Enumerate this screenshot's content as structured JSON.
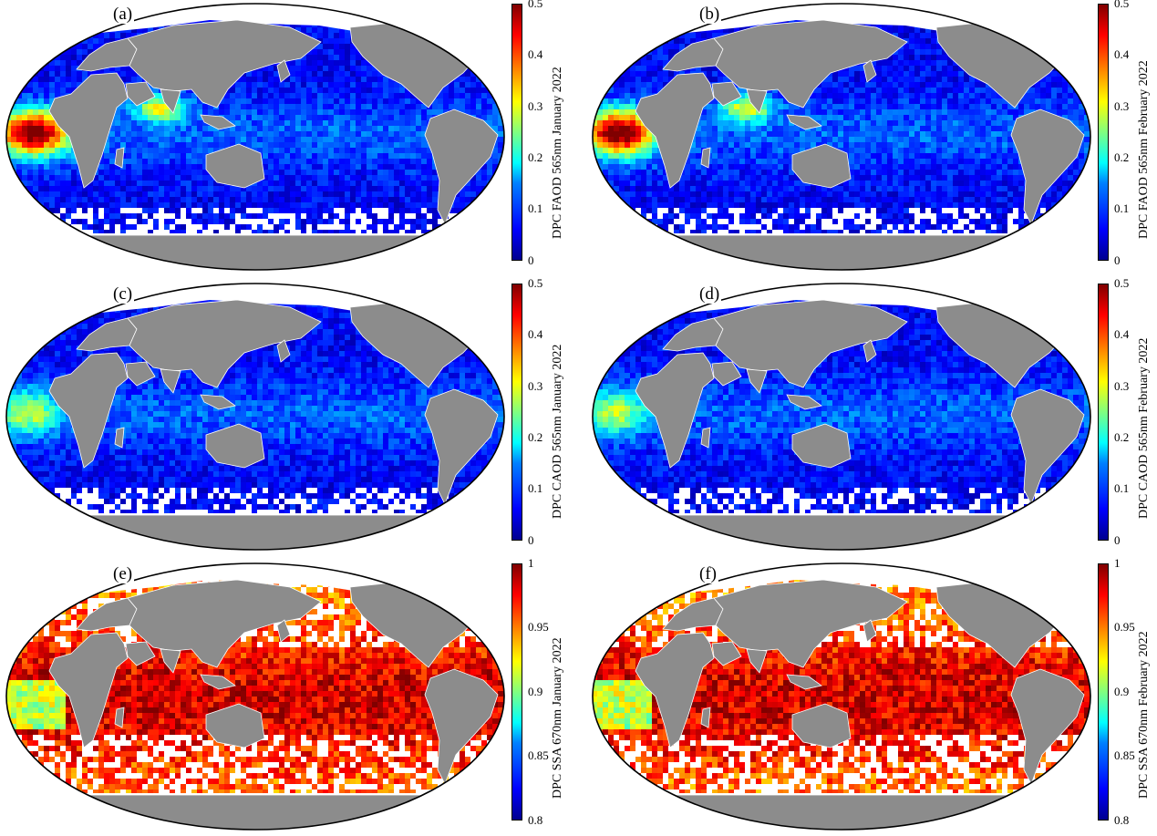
{
  "panels": [
    {
      "label": "(a)",
      "colorbar_title": "DPC FAOD 565nm January 2022",
      "ticks": [
        "0.5",
        "0.4",
        "0.3",
        "0.2",
        "0.1",
        "0"
      ],
      "scale": "aod",
      "pattern": "faod_jan"
    },
    {
      "label": "(b)",
      "colorbar_title": "DPC FAOD 565nm February 2022",
      "ticks": [
        "0.5",
        "0.4",
        "0.3",
        "0.2",
        "0.1",
        "0"
      ],
      "scale": "aod",
      "pattern": "faod_feb"
    },
    {
      "label": "(c)",
      "colorbar_title": "DPC CAOD 565nm January 2022",
      "ticks": [
        "0.5",
        "0.4",
        "0.3",
        "0.2",
        "0.1",
        "0"
      ],
      "scale": "aod",
      "pattern": "caod"
    },
    {
      "label": "(d)",
      "colorbar_title": "DPC CAOD 565nm February 2022",
      "ticks": [
        "0.5",
        "0.4",
        "0.3",
        "0.2",
        "0.1",
        "0"
      ],
      "scale": "aod",
      "pattern": "caod"
    },
    {
      "label": "(e)",
      "colorbar_title": "DPC SSA 670nm January 2022",
      "ticks": [
        "1",
        "0.95",
        "0.9",
        "0.85",
        "0.8"
      ],
      "scale": "ssa",
      "pattern": "ssa"
    },
    {
      "label": "(f)",
      "colorbar_title": "DPC SSA 670nm February 2022",
      "ticks": [
        "1",
        "0.95",
        "0.9",
        "0.85",
        "0.8"
      ],
      "scale": "ssa",
      "pattern": "ssa"
    }
  ],
  "colors": {
    "land": "#8c8c8c",
    "ice": "#ffffff",
    "colormap": "jet",
    "background": "#ffffff"
  }
}
